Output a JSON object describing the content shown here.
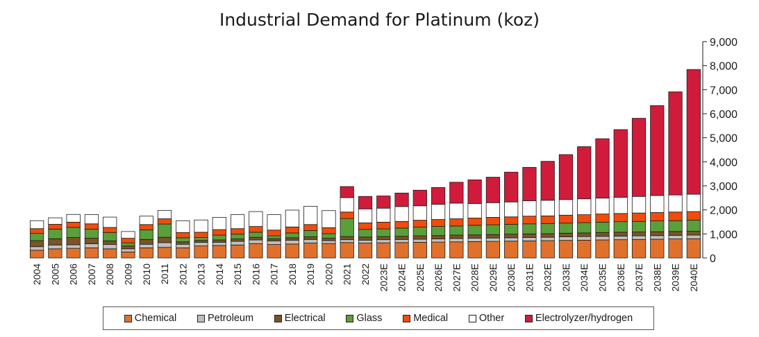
{
  "chart_data": {
    "type": "bar",
    "stacked": true,
    "title": "Industrial Demand for Platinum (koz)",
    "xlabel": "",
    "ylabel": "",
    "ylim": [
      0,
      9000
    ],
    "yticks": [
      0,
      1000,
      2000,
      3000,
      4000,
      5000,
      6000,
      7000,
      8000,
      9000
    ],
    "ytick_labels": [
      "0",
      "1,000",
      "2,000",
      "3,000",
      "4,000",
      "5,000",
      "6,000",
      "7,000",
      "8,000",
      "9,000"
    ],
    "y_axis_side": "right",
    "grid": false,
    "legend_position": "bottom",
    "categories": [
      "2004",
      "2005",
      "2006",
      "2007",
      "2008",
      "2009",
      "2010",
      "2011",
      "2012",
      "2013",
      "2014",
      "2015",
      "2016",
      "2017",
      "2018",
      "2019",
      "2020",
      "2021",
      "2022",
      "2023E",
      "2024E",
      "2025E",
      "2026E",
      "2027E",
      "2028E",
      "2029E",
      "2030E",
      "2031E",
      "2032E",
      "2033E",
      "2034E",
      "2035E",
      "2036E",
      "2037E",
      "2038E",
      "2039E",
      "2040E"
    ],
    "series": [
      {
        "name": "Chemical",
        "color": "#e0712c",
        "values": [
          320,
          380,
          400,
          420,
          380,
          250,
          420,
          440,
          420,
          500,
          520,
          540,
          600,
          560,
          580,
          620,
          600,
          640,
          620,
          630,
          640,
          650,
          660,
          670,
          680,
          690,
          700,
          710,
          720,
          730,
          740,
          750,
          760,
          770,
          780,
          790,
          800
        ]
      },
      {
        "name": "Petroleum",
        "color": "#bfbfbf",
        "values": [
          150,
          160,
          150,
          170,
          180,
          130,
          150,
          200,
          150,
          150,
          130,
          150,
          150,
          150,
          160,
          150,
          120,
          120,
          120,
          130,
          130,
          130,
          130,
          140,
          140,
          140,
          140,
          140,
          140,
          150,
          150,
          150,
          150,
          150,
          150,
          150,
          150
        ]
      },
      {
        "name": "Electrical",
        "color": "#7b5427",
        "values": [
          250,
          260,
          300,
          230,
          150,
          120,
          200,
          220,
          100,
          80,
          100,
          100,
          110,
          90,
          100,
          110,
          100,
          130,
          130,
          130,
          130,
          140,
          140,
          140,
          140,
          140,
          150,
          150,
          150,
          150,
          150,
          160,
          160,
          160,
          160,
          160,
          160
        ]
      },
      {
        "name": "Glass",
        "color": "#5a9f39",
        "values": [
          300,
          400,
          420,
          380,
          350,
          130,
          400,
          550,
          170,
          120,
          200,
          200,
          210,
          120,
          200,
          260,
          190,
          750,
          320,
          320,
          340,
          360,
          380,
          380,
          400,
          410,
          410,
          420,
          420,
          420,
          430,
          430,
          440,
          440,
          450,
          450,
          460
        ]
      },
      {
        "name": "Medical",
        "color": "#f04c0c",
        "values": [
          200,
          200,
          220,
          220,
          210,
          190,
          220,
          220,
          220,
          220,
          230,
          230,
          240,
          240,
          250,
          250,
          250,
          270,
          270,
          280,
          280,
          290,
          290,
          300,
          300,
          310,
          310,
          320,
          320,
          330,
          330,
          340,
          340,
          350,
          350,
          360,
          360
        ]
      },
      {
        "name": "Other",
        "color": "#ffffff",
        "values": [
          330,
          270,
          320,
          380,
          430,
          280,
          350,
          350,
          490,
          510,
          510,
          580,
          620,
          640,
          700,
          760,
          710,
          600,
          580,
          580,
          620,
          600,
          630,
          650,
          600,
          610,
          620,
          640,
          650,
          650,
          660,
          660,
          670,
          690,
          710,
          710,
          720
        ]
      },
      {
        "name": "Electrolyzer/hydrogen",
        "color": "#d01c3a",
        "values": [
          0,
          0,
          0,
          0,
          0,
          0,
          0,
          0,
          0,
          0,
          0,
          0,
          0,
          0,
          0,
          0,
          0,
          460,
          520,
          510,
          560,
          650,
          700,
          870,
          990,
          1060,
          1240,
          1390,
          1620,
          1870,
          2170,
          2470,
          2820,
          3250,
          3740,
          4290,
          5190
        ]
      }
    ]
  }
}
